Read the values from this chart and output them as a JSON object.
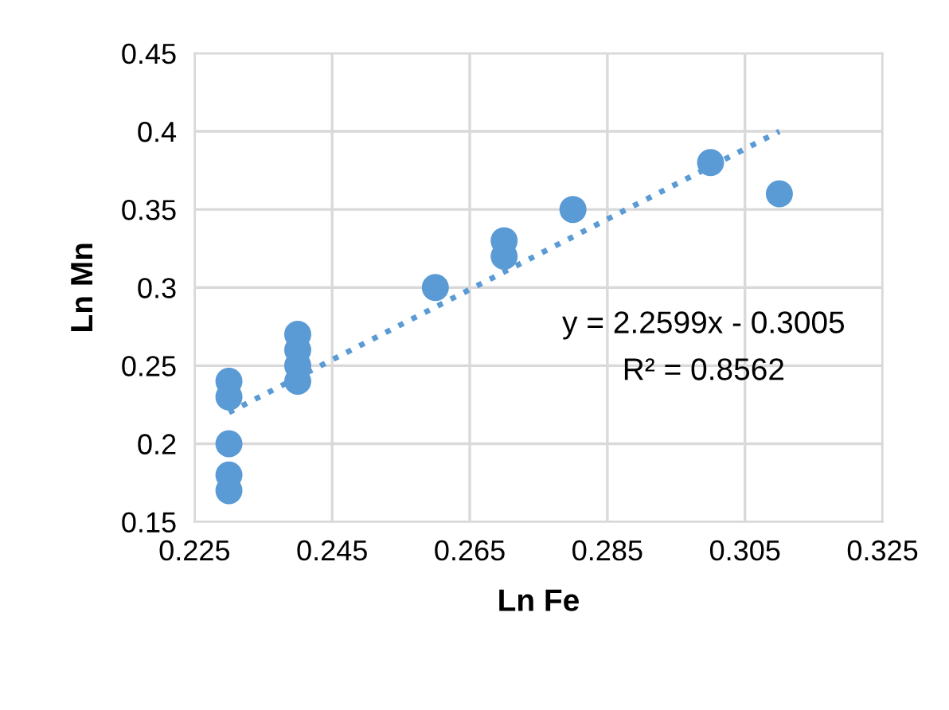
{
  "chart_data": {
    "type": "scatter",
    "xlabel": "Ln Fe",
    "ylabel": "Ln Mn",
    "series": [
      {
        "color": "#5b9bd5",
        "marker": "circle",
        "x": [
          0.23,
          0.23,
          0.23,
          0.23,
          0.23,
          0.24,
          0.24,
          0.24,
          0.24,
          0.26,
          0.27,
          0.27,
          0.28,
          0.3,
          0.31
        ],
        "values": [
          0.24,
          0.23,
          0.2,
          0.18,
          0.17,
          0.27,
          0.26,
          0.25,
          0.24,
          0.3,
          0.33,
          0.32,
          0.35,
          0.38,
          0.36
        ]
      },
      {
        "type": "line",
        "color": "#5b9bd5",
        "line_style": "dotted",
        "marker": "none",
        "x": [
          0.23,
          0.31
        ],
        "values": [
          0.22,
          0.4
        ]
      }
    ],
    "annotations": [
      "y = 2.2599x - 0.3005",
      "R² = 0.8562"
    ],
    "xlim": [
      0.225,
      0.325
    ],
    "xticks": [
      0.225,
      0.245,
      0.265,
      0.285,
      0.305,
      0.325
    ],
    "ylim": [
      0.15,
      0.45
    ],
    "yticks": [
      0.15,
      0.2,
      0.25,
      0.3,
      0.35,
      0.4,
      0.45
    ],
    "grid": true,
    "legend": false
  }
}
